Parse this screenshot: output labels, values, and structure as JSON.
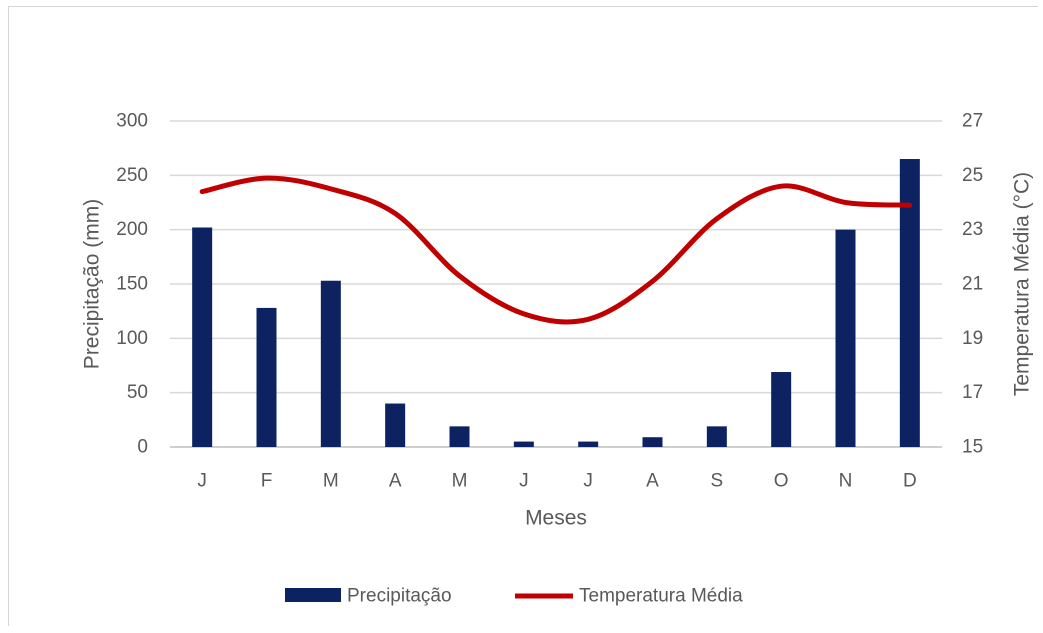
{
  "chart_data": {
    "type": "bar-line combo",
    "title": "",
    "xlabel": "Meses",
    "ylabel_left": "Precipitação (mm)",
    "ylabel_right": "Temperatura Média (°C)",
    "categories": [
      "J",
      "F",
      "M",
      "A",
      "M",
      "J",
      "J",
      "A",
      "S",
      "O",
      "N",
      "D"
    ],
    "ylim_left": [
      0,
      300
    ],
    "yticks_left": [
      "0",
      "50",
      "100",
      "150",
      "200",
      "250",
      "300"
    ],
    "ylim_right": [
      15,
      27
    ],
    "yticks_right": [
      "15",
      "17",
      "19",
      "21",
      "23",
      "25",
      "27"
    ],
    "grid": true,
    "legend_position": "bottom",
    "series": [
      {
        "name": "Precipitação",
        "type": "bar",
        "axis": "left",
        "color": "#0d2261",
        "values": [
          202,
          128,
          153,
          40,
          19,
          5,
          5,
          9,
          19,
          69,
          200,
          265
        ]
      },
      {
        "name": "Temperatura Média",
        "type": "line",
        "axis": "right",
        "color": "#c00000",
        "values": [
          24.4,
          24.9,
          24.5,
          23.6,
          21.3,
          19.9,
          19.7,
          21.1,
          23.4,
          24.6,
          24.0,
          23.9
        ]
      }
    ]
  }
}
